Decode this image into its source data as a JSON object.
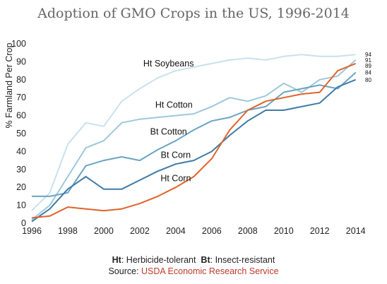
{
  "chart_data": {
    "type": "line",
    "title": "Adoption of GMO Crops in the US, 1996-2014",
    "ylabel": "% Farmland Per Crop",
    "xlabel": "",
    "xlim": [
      1996,
      2014.6
    ],
    "ylim": [
      0,
      100
    ],
    "xticks": [
      1996,
      1998,
      2000,
      2002,
      2004,
      2006,
      2008,
      2010,
      2012,
      2014
    ],
    "yticks": [
      0,
      10,
      20,
      30,
      40,
      50,
      60,
      70,
      80,
      90,
      100
    ],
    "grid": false,
    "series": [
      {
        "name": "Ht Soybeans",
        "color": "#c9e1ec",
        "x": [
          1996,
          1997,
          1998,
          1999,
          2000,
          2001,
          2002,
          2003,
          2004,
          2005,
          2006,
          2007,
          2008,
          2009,
          2010,
          2011,
          2012,
          2013,
          2014
        ],
        "y": [
          7,
          17,
          44,
          56,
          54,
          68,
          75,
          81,
          85,
          87,
          89,
          91,
          92,
          91,
          93,
          94,
          93,
          93,
          94
        ],
        "end_label": "94"
      },
      {
        "name": "Ht Cotton",
        "color": "#9cc8dc",
        "x": [
          1996,
          1997,
          1998,
          1999,
          2000,
          2001,
          2002,
          2003,
          2004,
          2005,
          2006,
          2007,
          2008,
          2009,
          2010,
          2011,
          2012,
          2013,
          2014
        ],
        "y": [
          2,
          10,
          26,
          42,
          46,
          56,
          58,
          59,
          60,
          61,
          65,
          70,
          68,
          71,
          78,
          73,
          80,
          82,
          91
        ],
        "end_label": "91"
      },
      {
        "name": "Bt Cotton",
        "color": "#6aa4c4",
        "x": [
          1996,
          1997,
          1998,
          1999,
          2000,
          2001,
          2002,
          2003,
          2004,
          2005,
          2006,
          2007,
          2008,
          2009,
          2010,
          2011,
          2012,
          2013,
          2014
        ],
        "y": [
          15,
          15,
          17,
          32,
          35,
          37,
          35,
          41,
          46,
          52,
          57,
          59,
          63,
          65,
          73,
          75,
          77,
          75,
          84
        ],
        "end_label": "84"
      },
      {
        "name": "Bt Corn",
        "color": "#3f7ba6",
        "x": [
          1996,
          1997,
          1998,
          1999,
          2000,
          2001,
          2002,
          2003,
          2004,
          2005,
          2006,
          2007,
          2008,
          2009,
          2010,
          2011,
          2012,
          2013,
          2014
        ],
        "y": [
          1,
          8,
          19,
          26,
          19,
          19,
          24,
          29,
          33,
          35,
          40,
          49,
          57,
          63,
          63,
          65,
          67,
          76,
          80
        ],
        "end_label": "80"
      },
      {
        "name": "Ht Corn",
        "color": "#e0632a",
        "x": [
          1996,
          1997,
          1998,
          1999,
          2000,
          2001,
          2002,
          2003,
          2004,
          2005,
          2006,
          2007,
          2008,
          2009,
          2010,
          2011,
          2012,
          2013,
          2014
        ],
        "y": [
          3,
          4,
          9,
          8,
          7,
          8,
          11,
          15,
          20,
          26,
          36,
          52,
          63,
          68,
          70,
          72,
          73,
          85,
          89
        ],
        "end_label": "89"
      }
    ],
    "series_labels": [
      {
        "text": "Ht Soybeans",
        "x": 2003.6,
        "y": 89
      },
      {
        "text": "Ht Cotton",
        "x": 2003.9,
        "y": 66
      },
      {
        "text": "Bt Cotton",
        "x": 2003.6,
        "y": 51
      },
      {
        "text": "Bt Corn",
        "x": 2004.0,
        "y": 38
      },
      {
        "text": "Ht Corn",
        "x": 2004.0,
        "y": 25
      }
    ]
  },
  "footer": {
    "ht_abbr": "Ht",
    "ht_text": ": Herbicide-tolerant  ",
    "bt_abbr": "Bt",
    "bt_text": ": Insect-resistant",
    "source_prefix": "Source: ",
    "source_name": "USDA Economic Research Service"
  }
}
